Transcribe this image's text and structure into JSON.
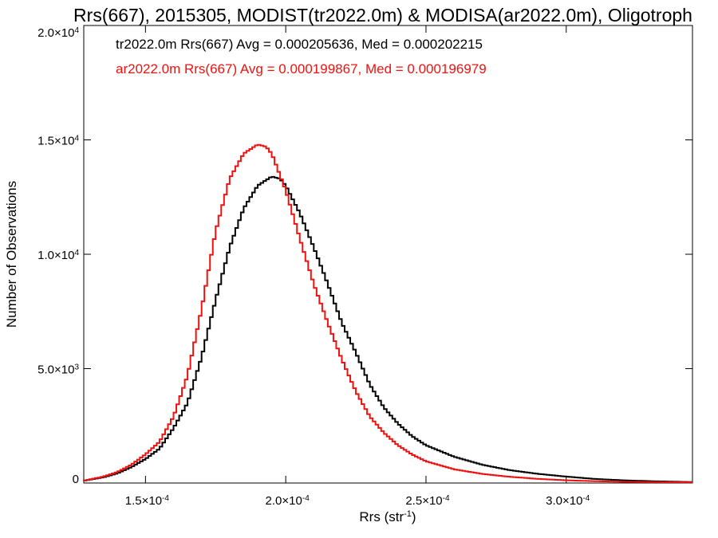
{
  "chart_data": {
    "type": "line",
    "title": "Rrs(667), 2015305, MODIST(tr2022.0m) & MODISA(ar2022.0m), Oligotroph",
    "xlabel": {
      "base": "Rrs (str",
      "sup": "-1",
      "end": ")"
    },
    "ylabel": "Number of Observations",
    "xlim": [
      0.000128,
      0.000345
    ],
    "ylim": [
      0,
      20000
    ],
    "grid": false,
    "x_ticks": [
      {
        "value": 0.00015,
        "mantissa": "1.5",
        "times": "×10",
        "exp": "-4"
      },
      {
        "value": 0.0002,
        "mantissa": "2.0",
        "times": "×10",
        "exp": "-4"
      },
      {
        "value": 0.00025,
        "mantissa": "2.5",
        "times": "×10",
        "exp": "-4"
      },
      {
        "value": 0.0003,
        "mantissa": "3.0",
        "times": "×10",
        "exp": "-4"
      }
    ],
    "y_ticks": [
      {
        "value": 0,
        "mantissa": "0",
        "times": "",
        "exp": ""
      },
      {
        "value": 5000,
        "mantissa": "5.0",
        "times": "×10",
        "exp": "3"
      },
      {
        "value": 10000,
        "mantissa": "1.0",
        "times": "×10",
        "exp": "4"
      },
      {
        "value": 15000,
        "mantissa": "1.5",
        "times": "×10",
        "exp": "4"
      },
      {
        "value": 20000,
        "mantissa": "2.0",
        "times": "×10",
        "exp": "4"
      }
    ],
    "annotations": [
      {
        "text": "tr2022.0m Rrs(667) Avg = 0.000205636, Med = 0.000202215",
        "color": "#000000"
      },
      {
        "text": "ar2022.0m Rrs(667) Avg = 0.000199867, Med = 0.000196979",
        "color": "#ee1111"
      }
    ],
    "series": [
      {
        "color": "#000000",
        "x": [
          0.000128,
          0.000135,
          0.00014,
          0.000145,
          0.00015,
          0.000155,
          0.00016,
          0.000165,
          0.00017,
          0.000175,
          0.00018,
          0.000185,
          0.00019,
          0.000195,
          0.000198,
          0.0002,
          0.000205,
          0.00021,
          0.000215,
          0.00022,
          0.000225,
          0.00023,
          0.000235,
          0.00024,
          0.000245,
          0.00025,
          0.00026,
          0.00027,
          0.00028,
          0.00029,
          0.0003,
          0.00031,
          0.00032,
          0.00033,
          0.000345
        ],
        "y": [
          100,
          250,
          420,
          700,
          1050,
          1500,
          2400,
          3500,
          5500,
          8000,
          10300,
          12000,
          13000,
          13400,
          13300,
          13000,
          11800,
          10300,
          8700,
          7000,
          5700,
          4300,
          3300,
          2600,
          2050,
          1650,
          1150,
          800,
          560,
          400,
          280,
          180,
          120,
          80,
          40
        ]
      },
      {
        "color": "#ee1111",
        "x": [
          0.000128,
          0.000135,
          0.00014,
          0.000145,
          0.00015,
          0.000155,
          0.00016,
          0.000165,
          0.00017,
          0.000175,
          0.00018,
          0.000185,
          0.00019,
          0.000193,
          0.000195,
          0.0002,
          0.000205,
          0.00021,
          0.000215,
          0.00022,
          0.000225,
          0.00023,
          0.000235,
          0.00024,
          0.000245,
          0.00025,
          0.00026,
          0.00027,
          0.00028,
          0.00029,
          0.0003,
          0.00031,
          0.00032,
          0.00033,
          0.000345
        ],
        "y": [
          100,
          280,
          480,
          800,
          1250,
          1800,
          2900,
          4700,
          7600,
          11000,
          13300,
          14400,
          14800,
          14700,
          14400,
          12800,
          10700,
          8700,
          7000,
          5400,
          4000,
          2900,
          2200,
          1650,
          1250,
          950,
          600,
          400,
          270,
          180,
          120,
          80,
          55,
          40,
          30
        ]
      }
    ]
  }
}
